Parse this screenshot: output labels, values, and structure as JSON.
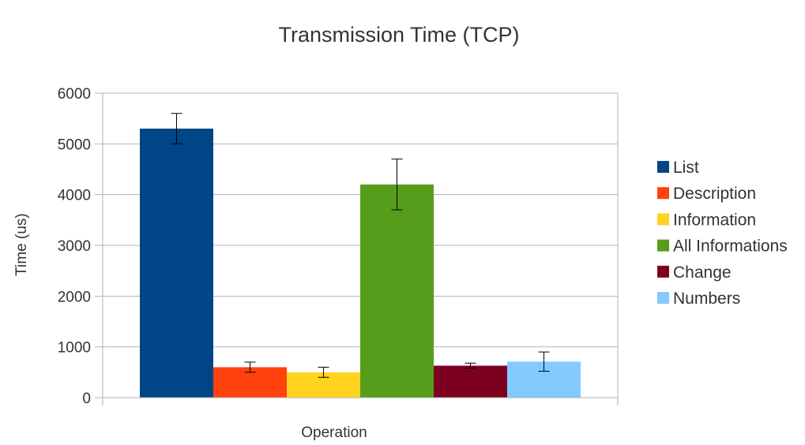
{
  "chart_data": {
    "type": "bar",
    "title": "Transmission Time (TCP)",
    "xlabel": "Operation",
    "ylabel": "Time (us)",
    "ylim": [
      0,
      6000
    ],
    "yticks": [
      0,
      1000,
      2000,
      3000,
      4000,
      5000,
      6000
    ],
    "grid": true,
    "legend_position": "right",
    "categories": [
      ""
    ],
    "series": [
      {
        "name": "List",
        "color": "#004586",
        "values": [
          5300
        ],
        "error": [
          300
        ]
      },
      {
        "name": "Description",
        "color": "#ff420e",
        "values": [
          600
        ],
        "error": [
          100
        ]
      },
      {
        "name": "Information",
        "color": "#ffd320",
        "values": [
          500
        ],
        "error": [
          100
        ]
      },
      {
        "name": "All Informations",
        "color": "#579d1c",
        "values": [
          4200
        ],
        "error": [
          500
        ]
      },
      {
        "name": "Change",
        "color": "#7e0021",
        "values": [
          630
        ],
        "error": [
          50
        ]
      },
      {
        "name": "Numbers",
        "color": "#83caff",
        "values": [
          710
        ],
        "error": [
          190
        ]
      }
    ]
  }
}
